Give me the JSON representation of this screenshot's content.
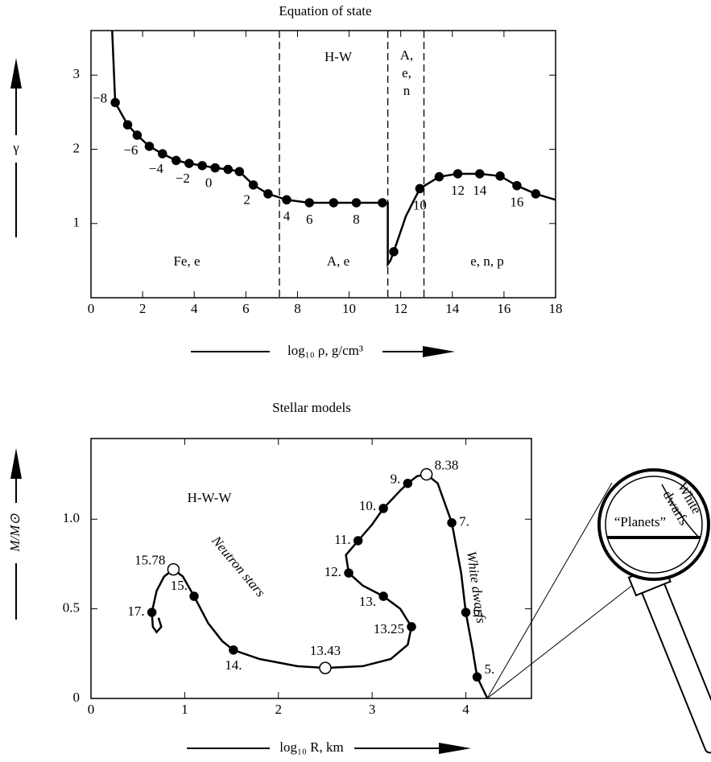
{
  "chart_data": [
    {
      "type": "line",
      "title": "Equation of state",
      "xlabel": "log₁₀ ρ, g/cm³",
      "ylabel": "γ",
      "xlim": [
        0,
        18
      ],
      "ylim": [
        0,
        3.6
      ],
      "xticks": [
        0,
        2,
        4,
        6,
        8,
        10,
        12,
        14,
        16,
        18
      ],
      "yticks": [
        1,
        2,
        3
      ],
      "vlines": [
        7.3,
        11.5,
        12.9
      ],
      "regions": {
        "hw": "H-W",
        "aen": [
          "A,",
          "e,",
          "n"
        ],
        "fee": "Fe, e",
        "ae": "A, e",
        "enp": "e, n, p"
      },
      "series": [
        {
          "marker": "none",
          "color": "#000000",
          "x": [
            0.82,
            0.94,
            1.42,
            1.79,
            2.26,
            2.77,
            3.3,
            3.8,
            4.31,
            4.81,
            5.31,
            5.75,
            6.29,
            6.86,
            7.58,
            8.46,
            9.4,
            10.28,
            11.29,
            11.5,
            11.5,
            11.6,
            11.73,
            12.2,
            12.74,
            13.49,
            14.21,
            15.06,
            15.85,
            16.5,
            17.23,
            18
          ],
          "values": [
            3.6,
            2.63,
            2.33,
            2.19,
            2.04,
            1.94,
            1.85,
            1.81,
            1.78,
            1.75,
            1.73,
            1.7,
            1.52,
            1.4,
            1.32,
            1.28,
            1.28,
            1.28,
            1.28,
            1.28,
            0.45,
            0.5,
            0.62,
            1.1,
            1.47,
            1.63,
            1.67,
            1.67,
            1.64,
            1.51,
            1.4,
            1.32
          ]
        },
        {
          "marker": "filled",
          "color": "#000000",
          "x": [
            0.94,
            1.42,
            1.79,
            2.26,
            2.77,
            3.3,
            3.8,
            4.31,
            4.81,
            5.31,
            5.75,
            6.29,
            6.86,
            7.58,
            8.46,
            9.4,
            10.28,
            11.29,
            11.73,
            12.74,
            13.49,
            14.21,
            15.06,
            15.85,
            16.5,
            17.23
          ],
          "values": [
            2.63,
            2.33,
            2.19,
            2.04,
            1.94,
            1.85,
            1.81,
            1.78,
            1.75,
            1.73,
            1.7,
            1.52,
            1.4,
            1.32,
            1.28,
            1.28,
            1.28,
            1.28,
            0.62,
            1.47,
            1.63,
            1.67,
            1.67,
            1.64,
            1.51,
            1.4
          ],
          "point_labels": [
            "−8",
            null,
            "−6",
            null,
            "−4",
            null,
            "−2",
            null,
            "0",
            null,
            null,
            "2",
            null,
            "4",
            "6",
            null,
            "8",
            null,
            null,
            "10",
            null,
            "12",
            "14",
            null,
            "16",
            null
          ]
        }
      ]
    },
    {
      "type": "line",
      "title": "Stellar models",
      "xlabel": "log₁₀ R, km",
      "ylabel": "M/M⊙",
      "xlim": [
        0,
        4.7
      ],
      "ylim": [
        0,
        1.45
      ],
      "xticks": [
        0,
        1,
        2,
        3,
        4
      ],
      "yticks": [
        0,
        0.5,
        {
          "value": 1,
          "label": "1.0"
        }
      ],
      "regions": {
        "hww": "H-W-W",
        "ns": "Neutron stars",
        "wd": "White dwarfs"
      },
      "magnifier": {
        "planets": "“Planets”",
        "wd": [
          "White",
          "dwarfs"
        ]
      },
      "series": [
        {
          "marker": "none",
          "color": "#000000",
          "x": [
            0.72,
            0.75,
            0.7,
            0.66,
            0.65,
            0.7,
            0.78,
            0.88,
            0.98,
            1.1,
            1.25,
            1.4,
            1.52,
            1.8,
            2.2,
            2.5,
            2.9,
            3.2,
            3.38,
            3.42,
            3.3,
            3.12,
            2.9,
            2.75,
            2.72,
            2.85,
            3.0,
            3.12,
            3.3,
            3.38,
            3.48,
            3.58,
            3.7,
            3.85,
            3.95,
            4.0,
            4.07,
            4.12,
            4.23
          ],
          "values": [
            0.45,
            0.4,
            0.37,
            0.4,
            0.48,
            0.6,
            0.68,
            0.72,
            0.68,
            0.57,
            0.42,
            0.32,
            0.27,
            0.22,
            0.18,
            0.17,
            0.18,
            0.22,
            0.3,
            0.4,
            0.5,
            0.57,
            0.63,
            0.7,
            0.8,
            0.88,
            0.97,
            1.06,
            1.16,
            1.2,
            1.24,
            1.25,
            1.2,
            0.98,
            0.7,
            0.48,
            0.28,
            0.12,
            0
          ]
        },
        {
          "marker": "filled",
          "color": "#000000",
          "x": [
            0.65,
            1.1,
            1.52,
            3.42,
            3.12,
            2.75,
            2.85,
            3.12,
            3.38,
            3.85,
            4.0,
            4.12
          ],
          "values": [
            0.48,
            0.57,
            0.27,
            0.4,
            0.57,
            0.7,
            0.88,
            1.06,
            1.2,
            0.98,
            0.48,
            0.12
          ],
          "point_labels": [
            "17.",
            "15.",
            "14.",
            "13.25",
            "13.",
            "12.",
            "11.",
            "10.",
            "9.",
            "7.",
            "6.",
            "5."
          ]
        },
        {
          "marker": "open",
          "color": "#000000",
          "x": [
            0.88,
            2.5,
            3.58
          ],
          "values": [
            0.72,
            0.17,
            1.25
          ],
          "point_labels": [
            "15.78",
            "13.43",
            "8.38"
          ]
        }
      ]
    }
  ]
}
